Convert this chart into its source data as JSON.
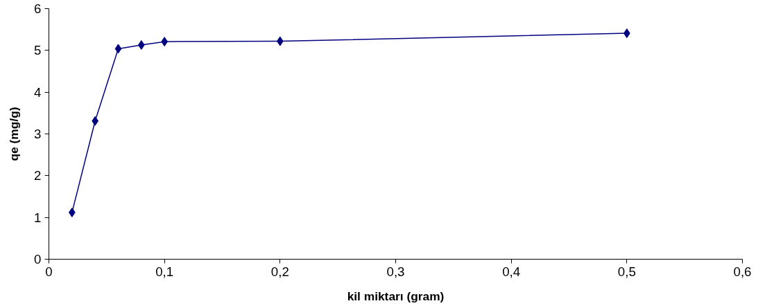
{
  "chart_data": {
    "type": "line",
    "xlabel": "kil miktarı (gram)",
    "ylabel": "qe (mg/g)",
    "x": [
      0.02,
      0.04,
      0.06,
      0.08,
      0.1,
      0.2,
      0.5
    ],
    "series": [
      {
        "color": "#000080",
        "values": [
          1.12,
          3.31,
          5.04,
          5.13,
          5.21,
          5.22,
          5.41
        ]
      }
    ],
    "xlim": [
      0,
      0.6
    ],
    "ylim": [
      0,
      6
    ],
    "xticks": [
      0,
      {
        "value": 0.1,
        "label": "0,1"
      },
      {
        "value": 0.2,
        "label": "0,2"
      },
      {
        "value": 0.3,
        "label": "0,3"
      },
      {
        "value": 0.4,
        "label": "0,4"
      },
      {
        "value": 0.5,
        "label": "0,5"
      },
      {
        "value": 0.6,
        "label": "0,6"
      }
    ],
    "yticks": [
      0,
      1,
      2,
      3,
      4,
      5,
      6
    ],
    "marker": "diamond",
    "line_style": "solid",
    "grid": false
  }
}
